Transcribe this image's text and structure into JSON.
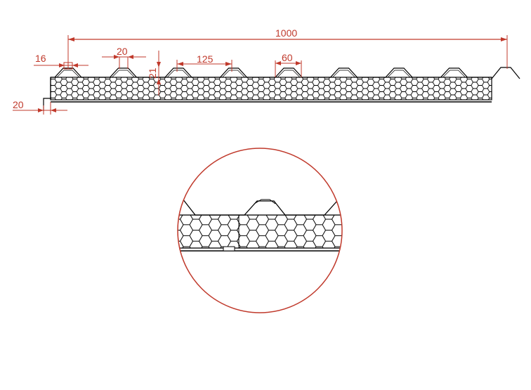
{
  "diagram": {
    "dimensions": {
      "overall_width": "1000",
      "edge_offset": "16",
      "rib_top_width": "20",
      "rib_spacing": "125",
      "rib_base_width": "60",
      "rib_height": "21",
      "step_width": "20"
    },
    "rib_count": 8,
    "colors": {
      "dimension": "#c0392b",
      "outline": "#000000",
      "background": "#ffffff"
    }
  }
}
